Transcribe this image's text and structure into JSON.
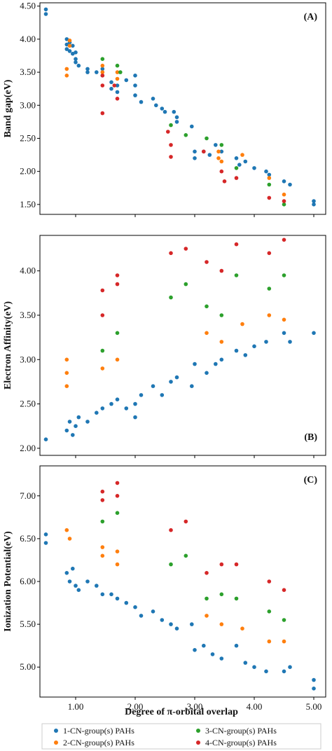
{
  "figure": {
    "xlabel": "Degree of π-orbital overlap",
    "x_ticks": [
      "1.00",
      "2.00",
      "3.00",
      "4.00",
      "5.00"
    ],
    "legend": [
      {
        "label": "1-CN-group(s) PAHs",
        "color": "#1f77b4"
      },
      {
        "label": "2-CN-group(s) PAHs",
        "color": "#ff7f0e"
      },
      {
        "label": "3-CN-group(s) PAHs",
        "color": "#2ca02c"
      },
      {
        "label": "4-CN-group(s) PAHs",
        "color": "#d62728"
      }
    ]
  },
  "chart_data": [
    {
      "type": "scatter",
      "panel_label": "(A)",
      "ylabel": "Band gap(eV)",
      "xlim": [
        0.4,
        5.2
      ],
      "ylim": [
        1.35,
        4.55
      ],
      "y_ticks": [
        "1.50",
        "2.00",
        "2.50",
        "3.00",
        "3.50",
        "4.00",
        "4.50"
      ],
      "legend_position": "bottom",
      "series": [
        {
          "name": "1-CN-group(s) PAHs",
          "color": "#1f77b4",
          "points": [
            [
              0.5,
              4.45
            ],
            [
              0.5,
              4.38
            ],
            [
              0.85,
              4.0
            ],
            [
              0.85,
              3.92
            ],
            [
              0.85,
              3.85
            ],
            [
              0.9,
              3.95
            ],
            [
              0.9,
              3.82
            ],
            [
              0.95,
              3.9
            ],
            [
              0.95,
              3.78
            ],
            [
              1.0,
              3.8
            ],
            [
              1.0,
              3.7
            ],
            [
              1.0,
              3.65
            ],
            [
              1.05,
              3.6
            ],
            [
              1.2,
              3.55
            ],
            [
              1.2,
              3.5
            ],
            [
              1.35,
              3.5
            ],
            [
              1.45,
              3.55
            ],
            [
              1.45,
              3.45
            ],
            [
              1.6,
              3.35
            ],
            [
              1.6,
              3.25
            ],
            [
              1.7,
              3.3
            ],
            [
              1.7,
              3.2
            ],
            [
              1.85,
              3.38
            ],
            [
              2.0,
              3.45
            ],
            [
              2.0,
              3.3
            ],
            [
              2.0,
              3.15
            ],
            [
              2.1,
              3.05
            ],
            [
              2.3,
              3.1
            ],
            [
              2.35,
              3.0
            ],
            [
              2.45,
              2.95
            ],
            [
              2.5,
              2.9
            ],
            [
              2.65,
              2.9
            ],
            [
              2.7,
              2.82
            ],
            [
              2.7,
              2.75
            ],
            [
              2.95,
              2.68
            ],
            [
              3.0,
              2.3
            ],
            [
              3.0,
              2.2
            ],
            [
              3.15,
              2.3
            ],
            [
              3.25,
              2.25
            ],
            [
              3.35,
              2.4
            ],
            [
              3.45,
              2.3
            ],
            [
              3.7,
              2.2
            ],
            [
              3.75,
              2.1
            ],
            [
              3.85,
              2.15
            ],
            [
              4.0,
              2.05
            ],
            [
              4.2,
              2.0
            ],
            [
              4.25,
              1.95
            ],
            [
              4.5,
              1.85
            ],
            [
              4.6,
              1.8
            ],
            [
              5.0,
              1.55
            ],
            [
              5.0,
              1.5
            ]
          ]
        },
        {
          "name": "2-CN-group(s) PAHs",
          "color": "#ff7f0e",
          "points": [
            [
              0.85,
              3.55
            ],
            [
              0.85,
              3.45
            ],
            [
              0.9,
              3.98
            ],
            [
              0.9,
              3.9
            ],
            [
              1.45,
              3.6
            ],
            [
              1.45,
              3.5
            ],
            [
              1.7,
              3.5
            ],
            [
              1.7,
              3.4
            ],
            [
              3.4,
              2.3
            ],
            [
              3.4,
              2.2
            ],
            [
              3.45,
              2.15
            ],
            [
              3.8,
              2.25
            ],
            [
              4.25,
              1.9
            ],
            [
              4.5,
              1.65
            ]
          ]
        },
        {
          "name": "3-CN-group(s) PAHs",
          "color": "#2ca02c",
          "points": [
            [
              1.45,
              3.7
            ],
            [
              1.7,
              3.6
            ],
            [
              1.75,
              3.5
            ],
            [
              2.6,
              2.7
            ],
            [
              2.85,
              2.55
            ],
            [
              3.2,
              2.5
            ],
            [
              3.45,
              2.4
            ],
            [
              3.7,
              2.05
            ],
            [
              4.25,
              1.8
            ],
            [
              4.5,
              1.5
            ]
          ]
        },
        {
          "name": "4-CN-group(s) PAHs",
          "color": "#d62728",
          "points": [
            [
              1.45,
              3.45
            ],
            [
              1.45,
              3.3
            ],
            [
              1.45,
              2.88
            ],
            [
              1.65,
              3.3
            ],
            [
              1.7,
              3.1
            ],
            [
              2.55,
              2.6
            ],
            [
              2.6,
              2.4
            ],
            [
              2.6,
              2.22
            ],
            [
              3.15,
              2.3
            ],
            [
              3.45,
              2.0
            ],
            [
              3.5,
              1.85
            ],
            [
              3.7,
              1.9
            ],
            [
              4.25,
              1.6
            ],
            [
              4.5,
              1.55
            ]
          ]
        }
      ]
    },
    {
      "type": "scatter",
      "panel_label": "(B)",
      "ylabel": "Electron Affinity(eV)",
      "xlim": [
        0.4,
        5.2
      ],
      "ylim": [
        1.92,
        4.4
      ],
      "y_ticks": [
        "2.00",
        "2.50",
        "3.00",
        "3.50",
        "4.00"
      ],
      "series": [
        {
          "name": "1-CN-group(s) PAHs",
          "color": "#1f77b4",
          "points": [
            [
              0.5,
              2.1
            ],
            [
              0.85,
              2.2
            ],
            [
              0.9,
              2.3
            ],
            [
              0.95,
              2.15
            ],
            [
              1.0,
              2.25
            ],
            [
              1.05,
              2.35
            ],
            [
              1.2,
              2.3
            ],
            [
              1.35,
              2.4
            ],
            [
              1.45,
              2.45
            ],
            [
              1.6,
              2.5
            ],
            [
              1.7,
              2.55
            ],
            [
              1.85,
              2.45
            ],
            [
              2.0,
              2.35
            ],
            [
              2.0,
              2.5
            ],
            [
              2.1,
              2.6
            ],
            [
              2.3,
              2.7
            ],
            [
              2.45,
              2.6
            ],
            [
              2.6,
              2.75
            ],
            [
              2.7,
              2.8
            ],
            [
              2.95,
              2.7
            ],
            [
              3.0,
              2.95
            ],
            [
              3.2,
              2.85
            ],
            [
              3.35,
              2.95
            ],
            [
              3.45,
              3.0
            ],
            [
              3.7,
              3.1
            ],
            [
              3.85,
              3.05
            ],
            [
              4.0,
              3.15
            ],
            [
              4.2,
              3.2
            ],
            [
              4.5,
              3.3
            ],
            [
              4.6,
              3.2
            ],
            [
              5.0,
              3.3
            ]
          ]
        },
        {
          "name": "2-CN-group(s) PAHs",
          "color": "#ff7f0e",
          "points": [
            [
              0.85,
              2.7
            ],
            [
              0.85,
              2.85
            ],
            [
              0.85,
              3.0
            ],
            [
              1.45,
              2.9
            ],
            [
              1.7,
              3.0
            ],
            [
              3.2,
              3.3
            ],
            [
              3.45,
              3.2
            ],
            [
              3.8,
              3.4
            ],
            [
              4.25,
              3.5
            ],
            [
              4.5,
              3.45
            ]
          ]
        },
        {
          "name": "3-CN-group(s) PAHs",
          "color": "#2ca02c",
          "points": [
            [
              1.45,
              3.1
            ],
            [
              1.7,
              3.3
            ],
            [
              2.6,
              3.7
            ],
            [
              2.85,
              3.85
            ],
            [
              3.2,
              3.6
            ],
            [
              3.45,
              3.5
            ],
            [
              3.7,
              3.95
            ],
            [
              4.25,
              3.8
            ],
            [
              4.5,
              3.95
            ]
          ]
        },
        {
          "name": "4-CN-group(s) PAHs",
          "color": "#d62728",
          "points": [
            [
              1.45,
              3.5
            ],
            [
              1.45,
              3.78
            ],
            [
              1.7,
              3.85
            ],
            [
              1.7,
              3.95
            ],
            [
              2.6,
              4.2
            ],
            [
              2.85,
              4.25
            ],
            [
              3.2,
              4.1
            ],
            [
              3.45,
              4.0
            ],
            [
              3.7,
              4.3
            ],
            [
              4.25,
              4.2
            ],
            [
              4.5,
              4.35
            ]
          ]
        }
      ]
    },
    {
      "type": "scatter",
      "panel_label": "(C)",
      "ylabel": "Ionization Potential(eV)",
      "xlim": [
        0.4,
        5.2
      ],
      "ylim": [
        4.65,
        7.35
      ],
      "y_ticks": [
        "5.00",
        "5.50",
        "6.00",
        "6.50",
        "7.00"
      ],
      "series": [
        {
          "name": "1-CN-group(s) PAHs",
          "color": "#1f77b4",
          "points": [
            [
              0.5,
              6.55
            ],
            [
              0.5,
              6.45
            ],
            [
              0.85,
              6.1
            ],
            [
              0.9,
              6.0
            ],
            [
              0.95,
              6.15
            ],
            [
              1.0,
              5.95
            ],
            [
              1.05,
              5.9
            ],
            [
              1.2,
              6.0
            ],
            [
              1.35,
              5.95
            ],
            [
              1.45,
              5.85
            ],
            [
              1.6,
              5.85
            ],
            [
              1.7,
              5.8
            ],
            [
              1.85,
              5.75
            ],
            [
              2.0,
              5.7
            ],
            [
              2.1,
              5.6
            ],
            [
              2.3,
              5.65
            ],
            [
              2.45,
              5.55
            ],
            [
              2.6,
              5.5
            ],
            [
              2.7,
              5.45
            ],
            [
              2.95,
              5.5
            ],
            [
              3.0,
              5.2
            ],
            [
              3.15,
              5.25
            ],
            [
              3.3,
              5.15
            ],
            [
              3.45,
              5.1
            ],
            [
              3.7,
              5.25
            ],
            [
              3.85,
              5.05
            ],
            [
              4.0,
              5.0
            ],
            [
              4.2,
              4.95
            ],
            [
              4.5,
              4.95
            ],
            [
              4.6,
              5.0
            ],
            [
              5.0,
              4.85
            ],
            [
              5.0,
              4.75
            ]
          ]
        },
        {
          "name": "2-CN-group(s) PAHs",
          "color": "#ff7f0e",
          "points": [
            [
              0.85,
              6.6
            ],
            [
              0.9,
              6.5
            ],
            [
              1.45,
              6.4
            ],
            [
              1.45,
              6.3
            ],
            [
              1.7,
              6.35
            ],
            [
              1.7,
              6.2
            ],
            [
              3.2,
              5.6
            ],
            [
              3.45,
              5.5
            ],
            [
              3.8,
              5.45
            ],
            [
              4.25,
              5.3
            ],
            [
              4.5,
              5.3
            ]
          ]
        },
        {
          "name": "3-CN-group(s) PAHs",
          "color": "#2ca02c",
          "points": [
            [
              1.45,
              6.7
            ],
            [
              1.7,
              6.8
            ],
            [
              2.6,
              6.2
            ],
            [
              2.85,
              6.3
            ],
            [
              3.2,
              5.8
            ],
            [
              3.45,
              5.85
            ],
            [
              3.7,
              5.8
            ],
            [
              4.25,
              5.65
            ],
            [
              4.5,
              5.55
            ]
          ]
        },
        {
          "name": "4-CN-group(s) PAHs",
          "color": "#d62728",
          "points": [
            [
              1.45,
              7.05
            ],
            [
              1.45,
              6.95
            ],
            [
              1.7,
              7.15
            ],
            [
              1.7,
              7.0
            ],
            [
              2.6,
              6.6
            ],
            [
              2.85,
              6.7
            ],
            [
              3.2,
              6.1
            ],
            [
              3.45,
              6.2
            ],
            [
              3.7,
              6.2
            ],
            [
              4.25,
              6.0
            ],
            [
              4.5,
              5.9
            ]
          ]
        }
      ]
    }
  ]
}
